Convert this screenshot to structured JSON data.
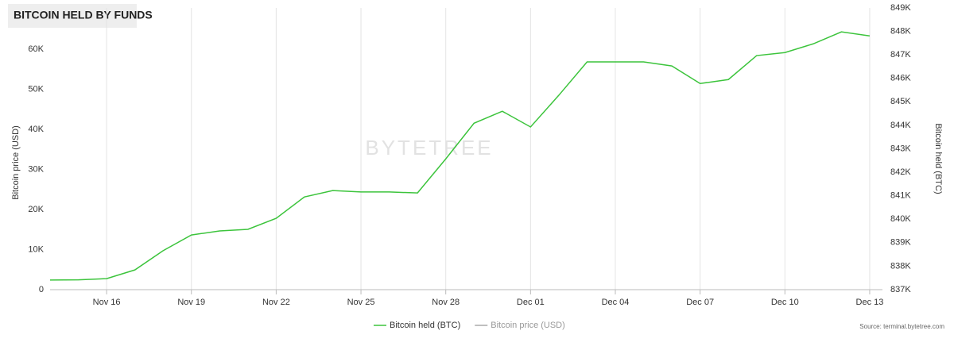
{
  "chart_data": {
    "type": "line",
    "title": "BITCOIN HELD BY FUNDS",
    "ylabel": "Bitcoin price (USD)",
    "y2label": "Bitcoin held (BTC)",
    "watermark": "BYTETREE",
    "source": "Source: terminal.bytetree.com",
    "categories": [
      null,
      null,
      "Nov 16",
      null,
      null,
      "Nov 19",
      null,
      null,
      "Nov 22",
      null,
      null,
      "Nov 25",
      null,
      null,
      "Nov 28",
      null,
      null,
      "Dec 01",
      null,
      null,
      "Dec 04",
      null,
      null,
      "Dec 07",
      null,
      null,
      "Dec 10",
      null,
      null,
      "Dec 13"
    ],
    "series": [
      {
        "name": "Bitcoin held (BTC)",
        "color": "#3cc43c",
        "axis": "y2",
        "values": [
          837410,
          837420,
          837470,
          837840,
          838660,
          839330,
          839500,
          839570,
          840040,
          840950,
          841220,
          841160,
          841160,
          841120,
          842570,
          844090,
          844600,
          843930,
          845280,
          846700,
          846700,
          846700,
          846530,
          845780,
          845950,
          846970,
          847100,
          847470,
          847980,
          847810
        ]
      },
      {
        "name": "Bitcoin price (USD)",
        "color": "#aaaaaa",
        "values": [
          null,
          null,
          null,
          null,
          null,
          null,
          null,
          null,
          null,
          null,
          null,
          null,
          null,
          null,
          null,
          null,
          null,
          null,
          null,
          null,
          null,
          null,
          null,
          null,
          null,
          null,
          null,
          null,
          null,
          null
        ]
      }
    ],
    "ylim": [
      0,
      70300
    ],
    "yticks": [
      0,
      {
        "value": 10000,
        "label": "10K"
      },
      {
        "value": 20000,
        "label": "20K"
      },
      {
        "value": 30000,
        "label": "30K"
      },
      {
        "value": 40000,
        "label": "40K"
      },
      {
        "value": 50000,
        "label": "50K"
      },
      {
        "value": 60000,
        "label": "60K"
      }
    ],
    "y2lim": [
      837000,
      849000
    ],
    "y2ticks": [
      {
        "value": 837000,
        "label": "837K"
      },
      {
        "value": 838000,
        "label": "838K"
      },
      {
        "value": 839000,
        "label": "839K"
      },
      {
        "value": 840000,
        "label": "840K"
      },
      {
        "value": 841000,
        "label": "841K"
      },
      {
        "value": 842000,
        "label": "842K"
      },
      {
        "value": 843000,
        "label": "843K"
      },
      {
        "value": 844000,
        "label": "844K"
      },
      {
        "value": 845000,
        "label": "845K"
      },
      {
        "value": 846000,
        "label": "846K"
      },
      {
        "value": 847000,
        "label": "847K"
      },
      {
        "value": 848000,
        "label": "848K"
      },
      {
        "value": 849000,
        "label": "849K"
      }
    ],
    "grid": true,
    "legend": "bottom"
  }
}
